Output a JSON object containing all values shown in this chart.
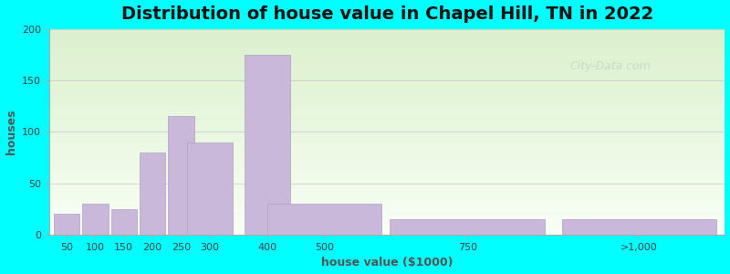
{
  "title": "Distribution of house value in Chapel Hill, TN in 2022",
  "xlabel": "house value ($1000)",
  "ylabel": "houses",
  "tick_labels": [
    "50",
    "100",
    "150",
    "200",
    "250",
    "300",
    "400",
    "500",
    "750",
    ">1,000"
  ],
  "tick_positions": [
    50,
    100,
    150,
    200,
    250,
    300,
    400,
    500,
    750,
    1050
  ],
  "bar_centers": [
    50,
    100,
    150,
    200,
    250,
    300,
    400,
    500,
    750,
    1050
  ],
  "bar_widths": [
    45,
    45,
    45,
    45,
    45,
    80,
    80,
    200,
    270,
    270
  ],
  "values": [
    20,
    30,
    25,
    80,
    115,
    90,
    175,
    30,
    15,
    15
  ],
  "bar_color": "#c9b8d8",
  "bar_edge_color": "#b0a0c8",
  "ylim": [
    0,
    200
  ],
  "xlim": [
    20,
    1200
  ],
  "yticks": [
    0,
    50,
    100,
    150,
    200
  ],
  "outer_bg": "#00FFFF",
  "title_fontsize": 14,
  "axis_label_fontsize": 9,
  "tick_fontsize": 8,
  "watermark_text": "City-Data.com",
  "watermark_color": "#b8c8b8",
  "watermark_alpha": 0.55
}
